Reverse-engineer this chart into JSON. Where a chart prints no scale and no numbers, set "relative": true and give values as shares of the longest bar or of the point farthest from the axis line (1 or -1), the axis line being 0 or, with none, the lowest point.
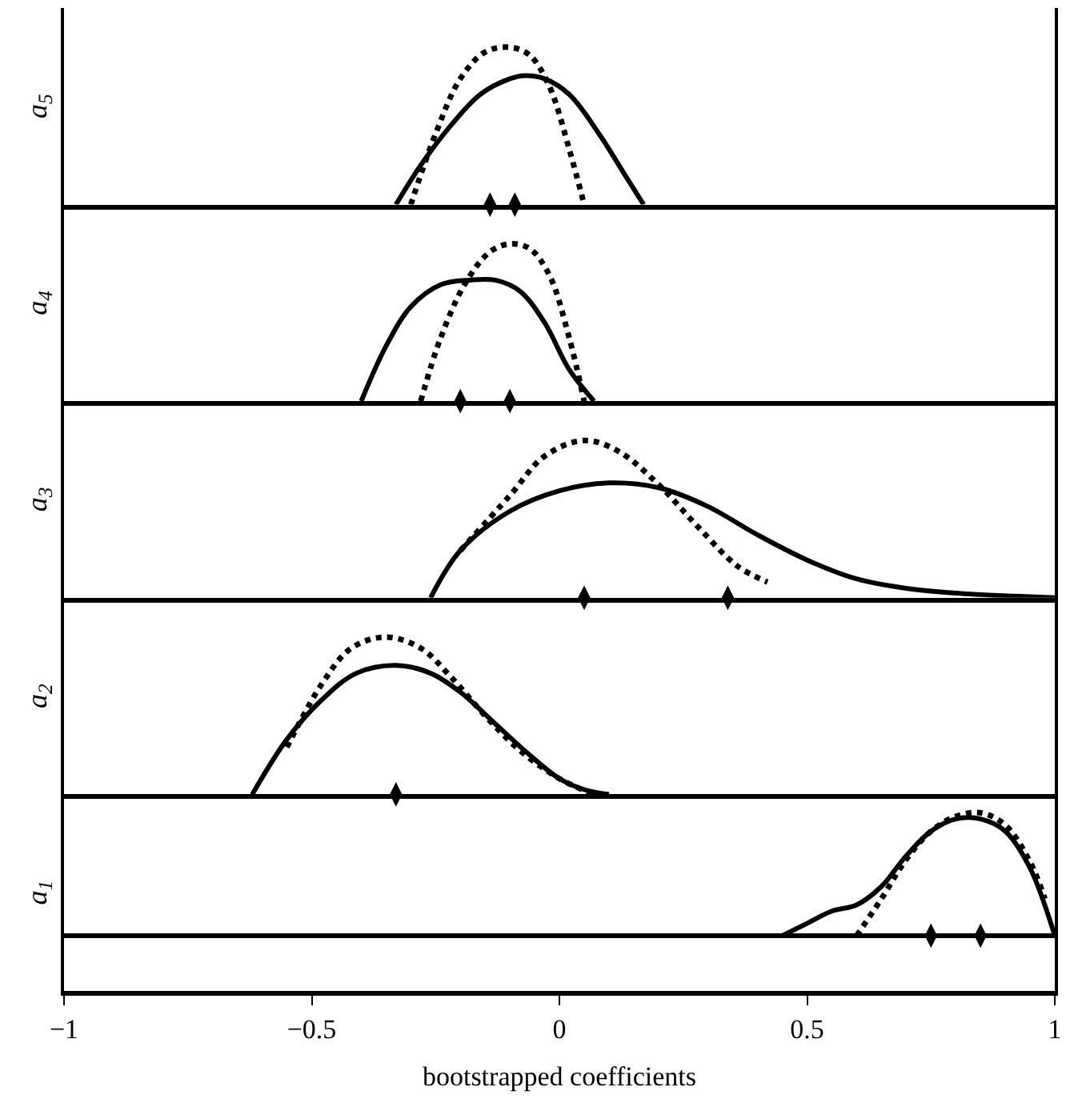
{
  "chart_data": [
    {
      "type": "line",
      "relative": true,
      "ylabel": "a$_{5}$",
      "xlim": [
        -1,
        1
      ],
      "tick_labels": false,
      "grid": false,
      "series": [
        {
          "color": "#000000",
          "line_style": "solid",
          "x": [
            -0.33,
            -0.28,
            -0.22,
            -0.16,
            -0.1,
            -0.07,
            -0.03,
            0.02,
            0.08,
            0.13,
            0.17
          ],
          "values": [
            0,
            0.25,
            0.5,
            0.7,
            0.8,
            0.82,
            0.8,
            0.7,
            0.45,
            0.2,
            0
          ]
        },
        {
          "color": "#000000",
          "line_style": "dotted",
          "x": [
            -0.3,
            -0.25,
            -0.2,
            -0.15,
            -0.1,
            -0.06,
            -0.02,
            0.02,
            0.05
          ],
          "values": [
            0,
            0.45,
            0.8,
            0.97,
            1,
            0.95,
            0.75,
            0.35,
            0
          ]
        },
        {
          "type": "scatter",
          "color": "#000000",
          "x": [
            -0.14,
            -0.09
          ],
          "values": [
            0,
            0
          ]
        }
      ]
    },
    {
      "type": "line",
      "relative": true,
      "ylabel": "a$_{4}$",
      "xlim": [
        -1,
        1
      ],
      "tick_labels": false,
      "grid": false,
      "series": [
        {
          "color": "#000000",
          "line_style": "solid",
          "x": [
            -0.4,
            -0.35,
            -0.3,
            -0.24,
            -0.18,
            -0.13,
            -0.08,
            -0.03,
            0.02,
            0.07
          ],
          "values": [
            0,
            0.35,
            0.6,
            0.74,
            0.77,
            0.77,
            0.7,
            0.5,
            0.2,
            0
          ]
        },
        {
          "color": "#000000",
          "line_style": "dotted",
          "x": [
            -0.28,
            -0.24,
            -0.19,
            -0.14,
            -0.1,
            -0.06,
            -0.02,
            0.02,
            0.05
          ],
          "values": [
            0,
            0.4,
            0.75,
            0.95,
            1,
            0.97,
            0.8,
            0.4,
            0
          ]
        },
        {
          "type": "scatter",
          "color": "#000000",
          "x": [
            -0.2,
            -0.1
          ],
          "values": [
            0,
            0
          ]
        }
      ]
    },
    {
      "type": "line",
      "relative": true,
      "ylabel": "a$_{3}$",
      "xlim": [
        -1,
        1
      ],
      "tick_labels": false,
      "grid": false,
      "series": [
        {
          "color": "#000000",
          "line_style": "solid",
          "x": [
            -0.26,
            -0.2,
            -0.1,
            0,
            0.1,
            0.2,
            0.3,
            0.4,
            0.5,
            0.6,
            0.7,
            0.8,
            1.0
          ],
          "values": [
            0,
            0.3,
            0.55,
            0.68,
            0.73,
            0.7,
            0.58,
            0.4,
            0.24,
            0.12,
            0.06,
            0.03,
            0
          ]
        },
        {
          "color": "#000000",
          "line_style": "dotted",
          "x": [
            -0.2,
            -0.1,
            -0.03,
            0.05,
            0.12,
            0.2,
            0.28,
            0.36,
            0.42
          ],
          "values": [
            0.3,
            0.65,
            0.9,
            1,
            0.93,
            0.72,
            0.45,
            0.2,
            0.1
          ]
        },
        {
          "type": "scatter",
          "color": "#000000",
          "x": [
            0.05,
            0.34
          ],
          "values": [
            0,
            0
          ]
        }
      ]
    },
    {
      "type": "line",
      "relative": true,
      "ylabel": "a$_{2}$",
      "xlim": [
        -1,
        1
      ],
      "tick_labels": false,
      "grid": false,
      "series": [
        {
          "color": "#000000",
          "line_style": "solid",
          "x": [
            -0.62,
            -0.55,
            -0.48,
            -0.41,
            -0.33,
            -0.26,
            -0.2,
            -0.13,
            -0.06,
            0,
            0.05,
            0.1
          ],
          "values": [
            0,
            0.35,
            0.6,
            0.77,
            0.82,
            0.77,
            0.65,
            0.45,
            0.25,
            0.1,
            0.03,
            0
          ]
        },
        {
          "color": "#000000",
          "line_style": "dotted",
          "x": [
            -0.55,
            -0.48,
            -0.42,
            -0.35,
            -0.28,
            -0.22,
            -0.15,
            -0.08,
            0,
            0.07
          ],
          "values": [
            0.3,
            0.7,
            0.93,
            1,
            0.93,
            0.75,
            0.5,
            0.28,
            0.1,
            0
          ]
        },
        {
          "type": "scatter",
          "color": "#000000",
          "x": [
            -0.33
          ],
          "values": [
            0
          ]
        }
      ]
    },
    {
      "type": "line",
      "relative": true,
      "ylabel": "a$_{1}$",
      "xlabel": "bootstrapped coefficients",
      "xlim": [
        -1,
        1
      ],
      "xticks": [
        -1,
        -0.5,
        0,
        0.5,
        1
      ],
      "tick_labels": "x",
      "grid": false,
      "series": [
        {
          "color": "#000000",
          "line_style": "solid",
          "x": [
            0.45,
            0.5,
            0.55,
            0.6,
            0.65,
            0.7,
            0.75,
            0.8,
            0.85,
            0.9,
            0.95,
            1.0
          ],
          "values": [
            0,
            0.1,
            0.2,
            0.25,
            0.4,
            0.65,
            0.85,
            0.95,
            0.95,
            0.85,
            0.55,
            0
          ]
        },
        {
          "color": "#000000",
          "line_style": "dotted",
          "x": [
            0.6,
            0.65,
            0.7,
            0.75,
            0.8,
            0.85,
            0.9,
            0.95,
            0.98
          ],
          "values": [
            0,
            0.3,
            0.62,
            0.85,
            0.97,
            1,
            0.9,
            0.6,
            0.3
          ]
        },
        {
          "type": "scatter",
          "color": "#000000",
          "x": [
            0.75,
            0.85
          ],
          "values": [
            0,
            0
          ]
        }
      ]
    }
  ]
}
